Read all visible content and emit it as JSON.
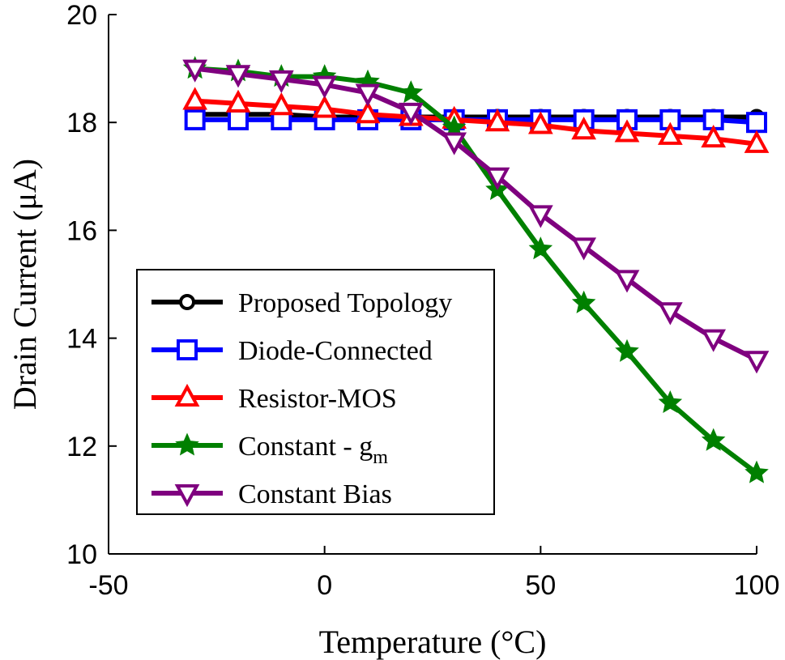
{
  "chart_data": {
    "type": "line",
    "title": "",
    "xlabel": "Temperature (°C)",
    "ylabel": "Drain Current (μA)",
    "xlim": [
      -50,
      100
    ],
    "ylim": [
      10,
      20
    ],
    "xticks": [
      -50,
      0,
      50,
      100
    ],
    "yticks": [
      10,
      12,
      14,
      16,
      18,
      20
    ],
    "grid": false,
    "legend_position": "lower-left",
    "x": [
      -30,
      -20,
      -10,
      0,
      10,
      20,
      30,
      40,
      50,
      60,
      70,
      80,
      90,
      100
    ],
    "series": [
      {
        "name": "Proposed Topology",
        "color": "#000000",
        "marker": "circle",
        "values": [
          18.15,
          18.15,
          18.15,
          18.1,
          18.1,
          18.1,
          18.1,
          18.1,
          18.1,
          18.1,
          18.1,
          18.1,
          18.1,
          18.1
        ]
      },
      {
        "name": "Diode-Connected",
        "color": "#0000ff",
        "marker": "square",
        "values": [
          18.05,
          18.05,
          18.05,
          18.05,
          18.05,
          18.05,
          18.05,
          18.05,
          18.05,
          18.05,
          18.05,
          18.05,
          18.05,
          18.0
        ]
      },
      {
        "name": "Resistor-MOS",
        "color": "#ff0000",
        "marker": "triangle-up",
        "values": [
          18.4,
          18.35,
          18.3,
          18.25,
          18.15,
          18.1,
          18.05,
          18.0,
          17.95,
          17.85,
          17.8,
          17.75,
          17.7,
          17.6
        ]
      },
      {
        "name": "Constant - g",
        "name_subscript": "m",
        "color": "#008000",
        "marker": "star",
        "values": [
          19.0,
          18.95,
          18.85,
          18.85,
          18.75,
          18.55,
          17.9,
          16.75,
          15.65,
          14.65,
          13.75,
          12.8,
          12.1,
          11.5
        ]
      },
      {
        "name": "Constant Bias",
        "color": "#7f007f",
        "marker": "triangle-down",
        "values": [
          19.0,
          18.9,
          18.8,
          18.7,
          18.55,
          18.2,
          17.65,
          17.0,
          16.3,
          15.7,
          15.1,
          14.5,
          14.0,
          13.6
        ]
      }
    ]
  }
}
